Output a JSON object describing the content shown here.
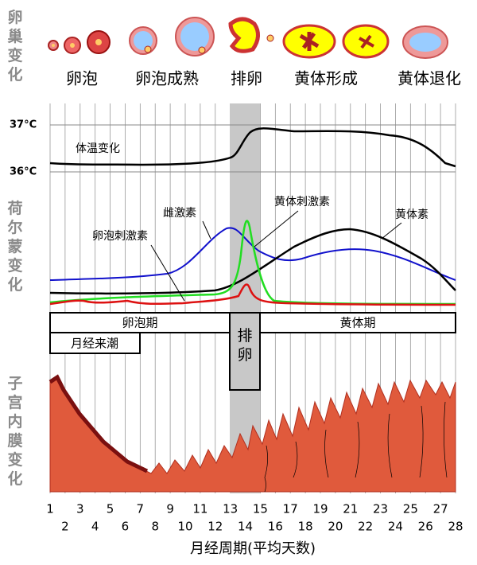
{
  "ovary": {
    "title": "卵巢变化",
    "stages": [
      "卵泡",
      "卵泡成熟",
      "排卵",
      "黄体形成",
      "黄体退化"
    ]
  },
  "hormones": {
    "title": "荷尔蒙变化",
    "temp_high": "37°C",
    "temp_low": "36°C",
    "temperature": "体温变化",
    "estrogen": "雌激素",
    "lh": "黄体刺激素",
    "progesterone": "黄体素",
    "fsh": "卵泡刺激素"
  },
  "phases": {
    "follicular": "卵泡期",
    "ovulation": "排卵",
    "luteal": "黄体期",
    "menstruation": "月经来潮"
  },
  "endometrium": {
    "title": "子宫内膜变化"
  },
  "axis": {
    "days": [
      1,
      2,
      3,
      4,
      5,
      6,
      7,
      8,
      9,
      10,
      11,
      12,
      13,
      14,
      15,
      16,
      17,
      18,
      19,
      20,
      21,
      22,
      23,
      24,
      25,
      26,
      27,
      28
    ],
    "title": "月经周期(平均天数)"
  }
}
